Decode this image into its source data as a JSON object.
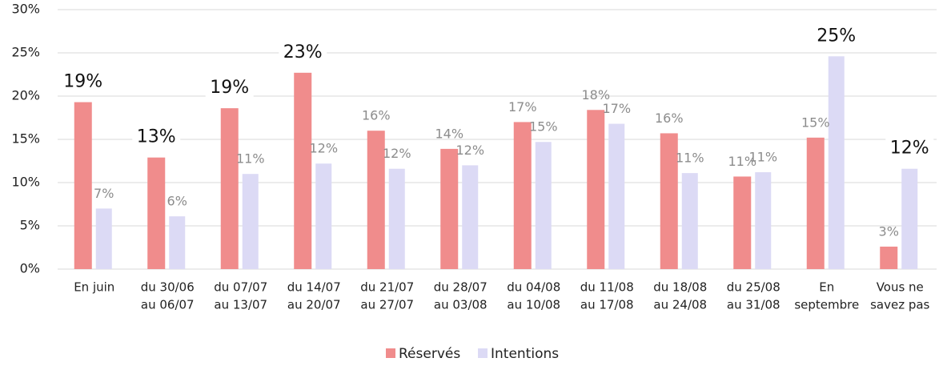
{
  "chart_data": {
    "type": "bar",
    "categories": [
      [
        "En juin"
      ],
      [
        "du 30/06",
        "au 06/07"
      ],
      [
        "du 07/07",
        "au 13/07"
      ],
      [
        "du 14/07",
        "au 20/07"
      ],
      [
        "du 21/07",
        "au 27/07"
      ],
      [
        "du 28/07",
        "au 03/08"
      ],
      [
        "du 04/08",
        "au 10/08"
      ],
      [
        "du 11/08",
        "au 17/08"
      ],
      [
        "du 18/08",
        "au 24/08"
      ],
      [
        "du 25/08",
        "au 31/08"
      ],
      [
        "En",
        "septembre"
      ],
      [
        "Vous ne",
        "savez pas"
      ]
    ],
    "series": [
      {
        "name": "Réservés",
        "color": "#f08c8c",
        "values": [
          19.3,
          12.9,
          18.6,
          22.7,
          16.0,
          13.9,
          17.0,
          18.4,
          15.7,
          10.7,
          15.2,
          2.6
        ],
        "value_labels": [
          "19%",
          "13%",
          "19%",
          "23%",
          "16%",
          "14%",
          "17%",
          "18%",
          "16%",
          "11%",
          "15%",
          "3%"
        ],
        "emphasized": [
          true,
          true,
          true,
          true,
          false,
          false,
          false,
          false,
          false,
          false,
          false,
          false
        ]
      },
      {
        "name": "Intentions",
        "color": "#dcdaf5",
        "values": [
          7.0,
          6.1,
          11.0,
          12.2,
          11.6,
          12.0,
          14.7,
          16.8,
          11.1,
          11.2,
          24.6,
          11.6
        ],
        "value_labels": [
          "7%",
          "6%",
          "11%",
          "12%",
          "12%",
          "12%",
          "15%",
          "17%",
          "11%",
          "11%",
          "25%",
          "12%"
        ],
        "emphasized": [
          false,
          false,
          false,
          false,
          false,
          false,
          false,
          false,
          false,
          false,
          true,
          true
        ]
      }
    ],
    "ylim": [
      0,
      30
    ],
    "yticks": [
      {
        "value": 0,
        "label": "0%"
      },
      {
        "value": 5,
        "label": "5%"
      },
      {
        "value": 10,
        "label": "10%"
      },
      {
        "value": 15,
        "label": "15%"
      },
      {
        "value": 20,
        "label": "20%"
      },
      {
        "value": 25,
        "label": "25%"
      },
      {
        "value": 30,
        "label": "30%"
      }
    ],
    "grid": true,
    "legend": "bottom"
  }
}
